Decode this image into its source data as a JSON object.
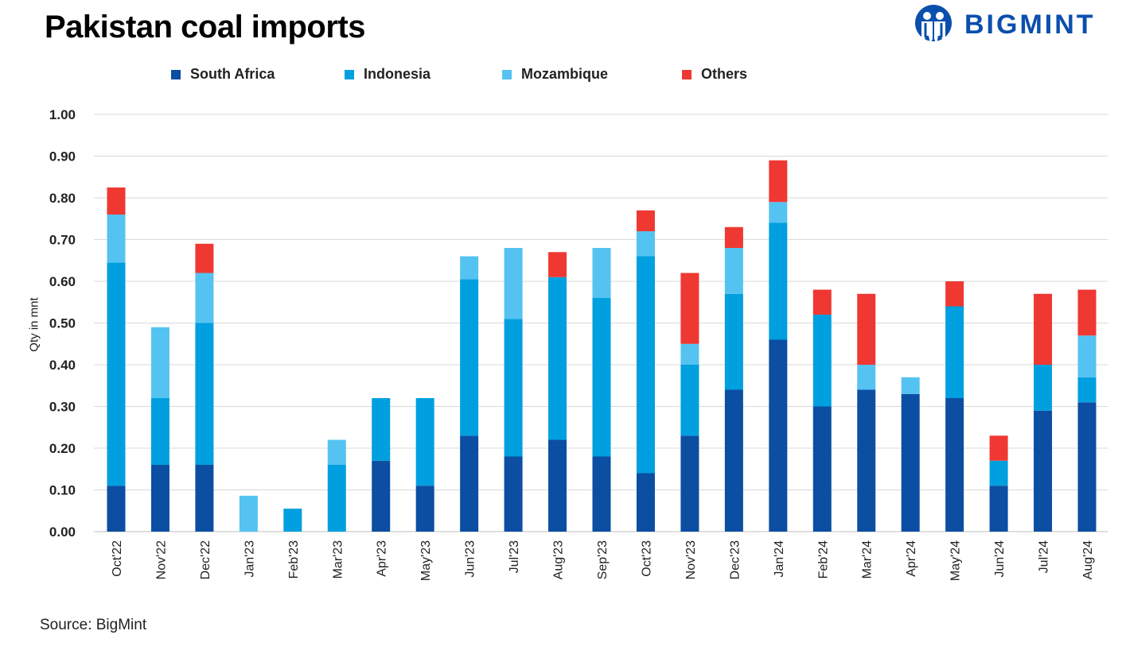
{
  "title": "Pakistan coal imports",
  "logo": {
    "text": "BIGMINT",
    "color": "#0b4fad"
  },
  "source": "Source: BigMint",
  "chart_data": {
    "type": "stacked-bar",
    "title": "Pakistan coal imports",
    "ylabel": "Qty in mnt",
    "xlabel": "",
    "ylim": [
      0,
      1.0
    ],
    "yticks": [
      "0.00",
      "0.10",
      "0.20",
      "0.30",
      "0.40",
      "0.50",
      "0.60",
      "0.70",
      "0.80",
      "0.90",
      "1.00"
    ],
    "grid": true,
    "legend_position": "top",
    "categories": [
      "Oct'22",
      "Nov'22",
      "Dec'22",
      "Jan'23",
      "Feb'23",
      "Mar'23",
      "Apr'23",
      "May'23",
      "Jun'23",
      "Jul'23",
      "Aug'23",
      "Sep'23",
      "Oct'23",
      "Nov'23",
      "Dec'23",
      "Jan'24",
      "Feb'24",
      "Mar'24",
      "Apr'24",
      "May'24",
      "Jun'24",
      "Jul'24",
      "Aug'24"
    ],
    "series": [
      {
        "name": "South Africa",
        "color": "#0b4ea2",
        "values": [
          0.11,
          0.16,
          0.16,
          0,
          0,
          0,
          0.17,
          0.11,
          0.23,
          0.18,
          0.22,
          0.18,
          0.14,
          0.23,
          0.34,
          0.46,
          0.3,
          0.34,
          0.33,
          0.32,
          0.11,
          0.29,
          0.31
        ]
      },
      {
        "name": "Indonesia",
        "color": "#009fdf",
        "values": [
          0.535,
          0.16,
          0.34,
          0,
          0.055,
          0.16,
          0.15,
          0.21,
          0.375,
          0.33,
          0.39,
          0.38,
          0.52,
          0.17,
          0.23,
          0.28,
          0.22,
          0,
          0,
          0.22,
          0.06,
          0.11,
          0.06
        ]
      },
      {
        "name": "Mozambique",
        "color": "#54c3f1",
        "values": [
          0.115,
          0.17,
          0.12,
          0.086,
          0,
          0.06,
          0,
          0,
          0.055,
          0.17,
          0,
          0.12,
          0.06,
          0.05,
          0.11,
          0.05,
          0,
          0.06,
          0.04,
          0,
          0,
          0,
          0.1
        ]
      },
      {
        "name": "Others",
        "color": "#ef3832",
        "values": [
          0.065,
          0,
          0.07,
          0,
          0,
          0,
          0,
          0,
          0,
          0,
          0.06,
          0,
          0.05,
          0.17,
          0.05,
          0.1,
          0.06,
          0.17,
          0,
          0.06,
          0.06,
          0.17,
          0.11
        ]
      }
    ]
  }
}
